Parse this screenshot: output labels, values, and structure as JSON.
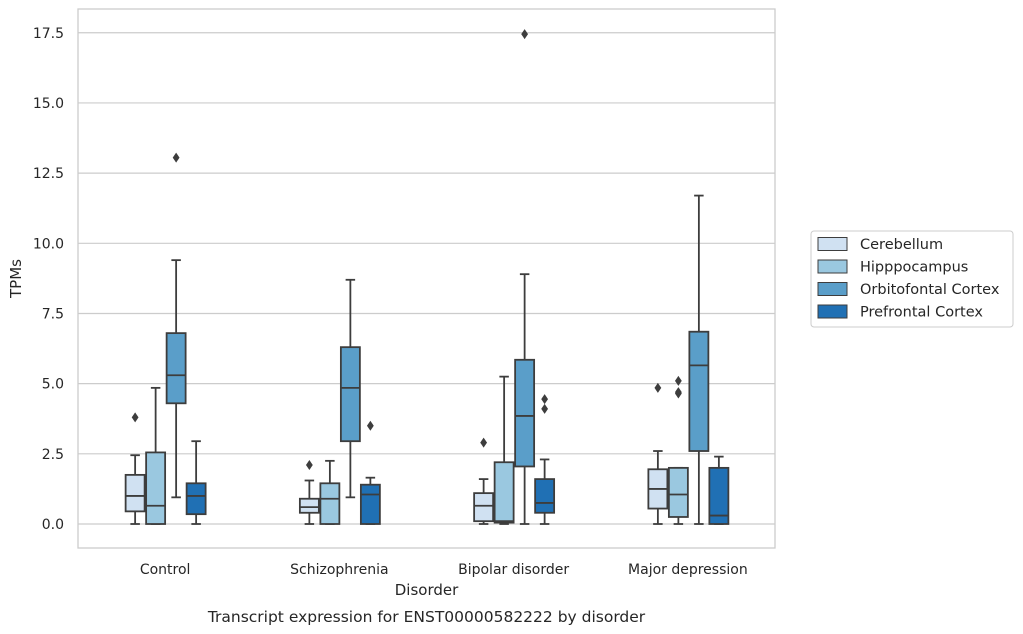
{
  "caption": "Transcript expression for ENST00000582222 by disorder",
  "chart_data": {
    "type": "box",
    "xlabel": "Disorder",
    "ylabel": "TPMs",
    "ylim": [
      -0.85,
      18.3
    ],
    "yticks": [
      "0.0",
      "2.5",
      "5.0",
      "7.5",
      "10.0",
      "12.5",
      "15.0",
      "17.5"
    ],
    "ytick_values": [
      0,
      2.5,
      5,
      7.5,
      10,
      12.5,
      15,
      17.5
    ],
    "grid": "horizontal",
    "legend_position": "right",
    "categories": [
      "Control",
      "Schizophrenia",
      "Bipolar disorder",
      "Major depression"
    ],
    "series": [
      {
        "name": "Cerebellum",
        "color": "#d0e1f2",
        "boxes": [
          {
            "whislo": 0.0,
            "q1": 0.45,
            "med": 1.0,
            "q3": 1.75,
            "whishi": 2.45,
            "fliers": [
              3.8
            ]
          },
          {
            "whislo": 0.0,
            "q1": 0.4,
            "med": 0.6,
            "q3": 0.9,
            "whishi": 1.55,
            "fliers": [
              2.1
            ]
          },
          {
            "whislo": 0.0,
            "q1": 0.1,
            "med": 0.65,
            "q3": 1.1,
            "whishi": 1.6,
            "fliers": [
              2.9
            ]
          },
          {
            "whislo": 0.0,
            "q1": 0.55,
            "med": 1.25,
            "q3": 1.95,
            "whishi": 2.6,
            "fliers": [
              4.85
            ]
          }
        ]
      },
      {
        "name": "Hipppocampus",
        "color": "#9ac8e0",
        "boxes": [
          {
            "whislo": 0.0,
            "q1": 0.0,
            "med": 0.65,
            "q3": 2.55,
            "whishi": 4.85,
            "fliers": []
          },
          {
            "whislo": 0.0,
            "q1": 0.0,
            "med": 0.9,
            "q3": 1.45,
            "whishi": 2.25,
            "fliers": []
          },
          {
            "whislo": 0.0,
            "q1": 0.05,
            "med": 0.1,
            "q3": 2.2,
            "whishi": 5.25,
            "fliers": []
          },
          {
            "whislo": 0.0,
            "q1": 0.25,
            "med": 1.05,
            "q3": 2.0,
            "whishi": 2.0,
            "fliers": [
              4.7,
              4.65,
              5.1
            ]
          }
        ]
      },
      {
        "name": "Orbitofontal Cortex",
        "color": "#5a9ec9",
        "boxes": [
          {
            "whislo": 0.95,
            "q1": 4.3,
            "med": 5.3,
            "q3": 6.8,
            "whishi": 9.4,
            "fliers": [
              13.05
            ]
          },
          {
            "whislo": 0.95,
            "q1": 2.95,
            "med": 4.85,
            "q3": 6.3,
            "whishi": 8.7,
            "fliers": []
          },
          {
            "whislo": 0.0,
            "q1": 2.05,
            "med": 3.85,
            "q3": 5.85,
            "whishi": 8.9,
            "fliers": [
              17.45
            ]
          },
          {
            "whislo": 0.0,
            "q1": 2.6,
            "med": 5.65,
            "q3": 6.85,
            "whishi": 11.7,
            "fliers": []
          }
        ]
      },
      {
        "name": "Prefrontal Cortex",
        "color": "#2070b4",
        "boxes": [
          {
            "whislo": 0.0,
            "q1": 0.35,
            "med": 1.0,
            "q3": 1.45,
            "whishi": 2.95,
            "fliers": []
          },
          {
            "whislo": 0.0,
            "q1": 0.0,
            "med": 1.05,
            "q3": 1.4,
            "whishi": 1.65,
            "fliers": [
              3.5
            ]
          },
          {
            "whislo": 0.0,
            "q1": 0.4,
            "med": 0.75,
            "q3": 1.6,
            "whishi": 2.3,
            "fliers": [
              4.1,
              4.45
            ]
          },
          {
            "whislo": 0.0,
            "q1": 0.0,
            "med": 0.3,
            "q3": 2.0,
            "whishi": 2.4,
            "fliers": []
          }
        ]
      }
    ]
  }
}
